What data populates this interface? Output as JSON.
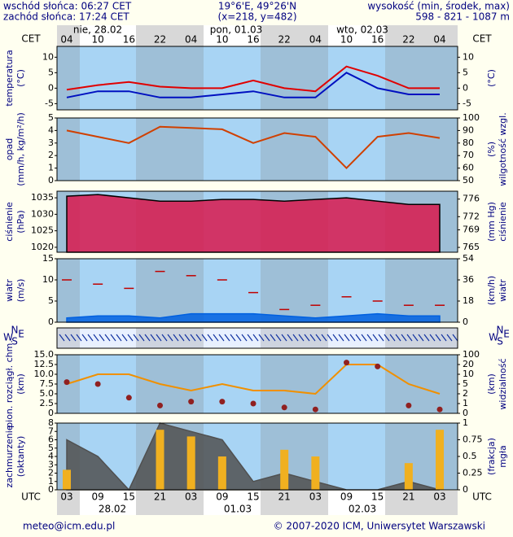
{
  "header": {
    "sunrise": "wschód słońca: 06:27 CET",
    "sunset": "zachód słońca: 17:24 CET",
    "coords": "19°6'E, 49°26'N",
    "grid": "(x=218, y=482)",
    "elev_title": "wysokość (min, środek, max)",
    "elev": "598 - 821 - 1087 m"
  },
  "time_axis": {
    "top_zone": "CET",
    "bottom_zone": "UTC",
    "cet": [
      "04",
      "10",
      "16",
      "22",
      "04",
      "10",
      "16",
      "22",
      "04",
      "10",
      "16",
      "22",
      "04"
    ],
    "utc": [
      "03",
      "09",
      "15",
      "21",
      "03",
      "09",
      "15",
      "21",
      "03",
      "09",
      "15",
      "21",
      "03"
    ],
    "top_dates": [
      "nie, 28.02",
      "pon, 01.03",
      "wto, 02.03"
    ],
    "bottom_dates": [
      "28.02",
      "01.03",
      "02.03"
    ]
  },
  "chart_data": [
    {
      "type": "line",
      "ylabel": [
        "temperatura",
        "(°C)"
      ],
      "y2label": [
        "(°C)"
      ],
      "ylim": [
        -7,
        13.5
      ],
      "yticks": [
        -5,
        0,
        5,
        10
      ],
      "y2lim": [
        -7,
        13.5
      ],
      "y2ticks": [
        -5,
        0,
        5,
        10
      ],
      "series": [
        {
          "name": "max",
          "style": "line",
          "color": "#e00000",
          "values": [
            -0.5,
            1,
            2,
            0.5,
            0,
            0,
            2.5,
            0,
            -1,
            7,
            4,
            0,
            0
          ]
        },
        {
          "name": "mid",
          "style": "line",
          "color": "#0010c0",
          "values": [
            -3,
            -1,
            -1,
            -3,
            -3,
            -2,
            -1,
            -3,
            -3,
            5,
            0,
            -2,
            -2
          ]
        }
      ]
    },
    {
      "type": "line",
      "ylabel": [
        "opad",
        "(mm/h, kg/m²/h)"
      ],
      "y2label": [
        "(%)",
        "wilgotność wzgl."
      ],
      "ylim": [
        0,
        5
      ],
      "yticks": [
        0,
        1,
        2,
        3,
        4,
        5
      ],
      "y2lim": [
        50,
        100
      ],
      "y2ticks": [
        50,
        60,
        70,
        80,
        90,
        100
      ],
      "series": [
        {
          "name": "humidity",
          "style": "line",
          "axis": "y2",
          "color": "#d04000",
          "values": [
            90,
            85,
            80,
            93,
            92,
            91,
            80,
            88,
            85,
            60,
            85,
            88,
            84
          ]
        }
      ]
    },
    {
      "type": "line",
      "ylabel": [
        "ciśnienie",
        "(hPa)"
      ],
      "y2label": [
        "(mm Hg)",
        "ciśnienie"
      ],
      "ylim": [
        1018.5,
        1037
      ],
      "yticks": [
        1020,
        1025,
        1030,
        1035
      ],
      "y2lim": [
        763.9,
        777.8
      ],
      "y2ticks": [
        765,
        769,
        772,
        776
      ],
      "series": [
        {
          "name": "pressure",
          "style": "area",
          "color": "#d8184c",
          "values": [
            1035.5,
            1036,
            1035,
            1034,
            1034,
            1034.5,
            1034.5,
            1034,
            1034.5,
            1035,
            1034,
            1033,
            1033
          ]
        }
      ]
    },
    {
      "type": "line",
      "ylabel": [
        "wiatr",
        "(m/s)"
      ],
      "y2label": [
        "(km/h)",
        "wiatr"
      ],
      "ylim": [
        0,
        15
      ],
      "yticks": [
        0,
        5,
        10,
        15
      ],
      "y2lim": [
        0,
        54
      ],
      "y2ticks": [
        0,
        18,
        36,
        54
      ],
      "series": [
        {
          "name": "gusts",
          "style": "dashes",
          "color": "#c00000",
          "values": [
            10,
            9,
            8,
            12,
            11,
            10,
            7,
            3,
            4,
            6,
            5,
            4,
            4
          ]
        },
        {
          "name": "wind",
          "style": "area",
          "color": "#0060e0",
          "values": [
            1,
            1.5,
            1.5,
            1,
            2,
            2,
            2,
            1.5,
            1,
            1.5,
            2,
            1.5,
            1.5
          ]
        }
      ]
    },
    {
      "type": "arrows",
      "letters": [
        "W",
        "S",
        "N",
        "E"
      ]
    },
    {
      "type": "line",
      "ylabel": [
        "pion. rozciągł. chm.",
        "(km)"
      ],
      "y2label": [
        "(km)",
        "widzialność"
      ],
      "ylim": [
        0,
        15
      ],
      "yticks": [
        0,
        {
          "value": 2.5,
          "label": "2.5"
        },
        {
          "value": 5,
          "label": "5.0"
        },
        {
          "value": 7.5,
          "label": "7.5"
        },
        {
          "value": 10,
          "label": "10.0"
        },
        {
          "value": 12.5,
          "label": "12.5"
        },
        {
          "value": 15,
          "label": "15.0"
        }
      ],
      "y2scale": "piecewise",
      "y2ticks": [
        0,
        1,
        2,
        5,
        10,
        20,
        100
      ],
      "series": [
        {
          "name": "visibility",
          "style": "line",
          "axis": "y2",
          "color": "#f09000",
          "values": [
            5,
            10,
            10,
            5,
            3,
            5,
            3,
            3,
            2,
            20,
            20,
            5,
            2
          ]
        },
        {
          "name": "cloud",
          "style": "dots",
          "color": "#902020",
          "values": [
            8,
            7.5,
            4,
            2,
            3,
            3,
            2.5,
            1.5,
            1,
            13,
            12,
            2,
            1
          ]
        }
      ]
    },
    {
      "type": "line",
      "ylabel": [
        "zachmurzenie",
        "(oktanty)"
      ],
      "y2label": [
        "(frakcja)",
        "mgła"
      ],
      "ylim": [
        0,
        8
      ],
      "yticks": [
        0,
        1,
        2,
        3,
        4,
        5,
        6,
        7,
        8
      ],
      "y2lim": [
        0,
        1
      ],
      "y2ticks": [
        0,
        0.25,
        0.5,
        0.75,
        1
      ],
      "series": [
        {
          "name": "clouds",
          "style": "area",
          "color": "#505050",
          "values": [
            6,
            4,
            0,
            8,
            7,
            6,
            1,
            2,
            1,
            0,
            0,
            1,
            0
          ]
        },
        {
          "name": "fog",
          "style": "bars",
          "axis": "y2",
          "color": "#f0b020",
          "values": [
            0.3,
            0,
            0,
            0.9,
            0.8,
            0.5,
            0,
            0.6,
            0.5,
            0,
            0,
            0.4,
            0.9
          ]
        }
      ]
    }
  ],
  "footer": {
    "email": "meteo@icm.edu.pl",
    "copyright": "© 2007-2020 ICM, Uniwersytet Warszawski"
  }
}
